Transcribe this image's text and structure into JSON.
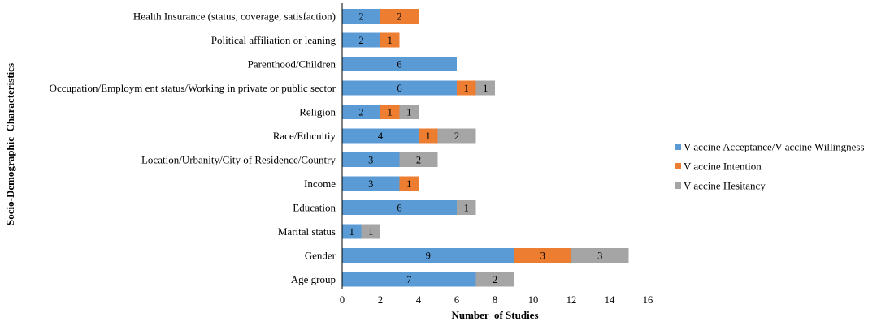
{
  "chart_data": {
    "type": "bar",
    "orientation": "horizontal",
    "stacked": true,
    "title": "",
    "xlabel": "Number  of Studies",
    "ylabel": "Socio-Demographic  Characteristics",
    "xlim": [
      0,
      16
    ],
    "xticks": [
      0,
      2,
      4,
      6,
      8,
      10,
      12,
      14,
      16
    ],
    "grid": false,
    "legend_position": "right",
    "categories": [
      "Health Insurance (status, coverage, satisfaction)",
      "Political affiliation or leaning",
      "Parenthood/Children",
      "Occupation/Employm ent status/Working in private or public sector",
      "Religion",
      "Race/Ethcnitiy",
      "Location/Urbanity/City of Residence/Country",
      "Income",
      "Education",
      "Marital status",
      "Gender",
      "Age group"
    ],
    "series": [
      {
        "name": "V accine Acceptance/V accine Willingness",
        "color": "#5B9BD5",
        "values": [
          2,
          2,
          6,
          6,
          2,
          4,
          3,
          3,
          6,
          1,
          9,
          7
        ]
      },
      {
        "name": "V accine Intention",
        "color": "#ED7D31",
        "values": [
          2,
          1,
          0,
          1,
          1,
          1,
          0,
          1,
          0,
          0,
          3,
          0
        ]
      },
      {
        "name": "V accine Hesitancy",
        "color": "#A5A5A5",
        "values": [
          0,
          0,
          0,
          1,
          1,
          2,
          2,
          0,
          1,
          1,
          3,
          2
        ]
      }
    ]
  }
}
